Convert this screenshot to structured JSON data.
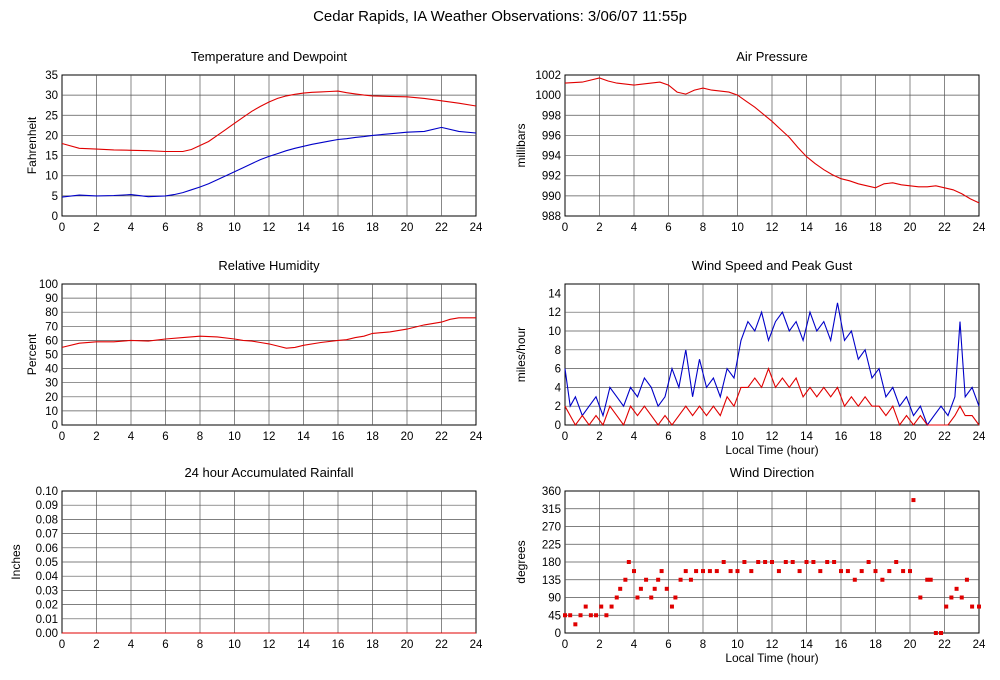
{
  "title": "Cedar Rapids, IA Weather Observations: 3/06/07 11:55p",
  "colors": {
    "red": "#e00000",
    "blue": "#0000c8",
    "grid": "#555555"
  },
  "chart_data": [
    {
      "id": "temp",
      "type": "line",
      "title": "Temperature and Dewpoint",
      "ylabel": "Fahrenheit",
      "xlabel": "",
      "xlim": [
        0,
        24
      ],
      "ylim": [
        0,
        35
      ],
      "xticks": [
        0,
        2,
        4,
        6,
        8,
        10,
        12,
        14,
        16,
        18,
        20,
        22,
        24
      ],
      "yticks": [
        0,
        5,
        10,
        15,
        20,
        25,
        30,
        35
      ],
      "series": [
        {
          "color": "red",
          "x": [
            0,
            1,
            2,
            3,
            4,
            5,
            6,
            6.5,
            7,
            7.5,
            8,
            8.5,
            9,
            9.5,
            10,
            10.5,
            11,
            11.5,
            12,
            12.5,
            13,
            13.5,
            14,
            14.5,
            15,
            15.5,
            16,
            16.5,
            17,
            17.5,
            18,
            19,
            20,
            21,
            22,
            23,
            24
          ],
          "y": [
            18,
            16.8,
            16.6,
            16.4,
            16.3,
            16.2,
            16,
            16,
            16,
            16.5,
            17.5,
            18.5,
            20,
            21.5,
            23,
            24.5,
            26,
            27.2,
            28.3,
            29.2,
            29.8,
            30.2,
            30.5,
            30.7,
            30.8,
            30.9,
            31,
            30.6,
            30.3,
            30,
            29.8,
            29.7,
            29.6,
            29.2,
            28.6,
            28,
            27.3
          ]
        },
        {
          "color": "blue",
          "x": [
            0,
            1,
            2,
            3,
            4,
            5,
            6,
            6.5,
            7,
            7.5,
            8,
            8.5,
            9,
            9.5,
            10,
            10.5,
            11,
            11.5,
            12,
            12.5,
            13,
            13.5,
            14,
            14.5,
            15,
            15.5,
            16,
            16.5,
            17,
            17.5,
            18,
            19,
            20,
            21,
            22,
            23,
            24
          ],
          "y": [
            4.7,
            5.2,
            5,
            5.1,
            5.3,
            4.8,
            5,
            5.3,
            5.8,
            6.5,
            7.2,
            8,
            9,
            10,
            11,
            12,
            13,
            14,
            14.8,
            15.5,
            16.2,
            16.8,
            17.3,
            17.8,
            18.2,
            18.6,
            19,
            19.2,
            19.5,
            19.7,
            20,
            20.4,
            20.8,
            21,
            22,
            21,
            20.6
          ]
        }
      ]
    },
    {
      "id": "pressure",
      "type": "line",
      "title": "Air Pressure",
      "ylabel": "millibars",
      "xlabel": "",
      "xlim": [
        0,
        24
      ],
      "ylim": [
        988,
        1002
      ],
      "xticks": [
        0,
        2,
        4,
        6,
        8,
        10,
        12,
        14,
        16,
        18,
        20,
        22,
        24
      ],
      "yticks": [
        988,
        990,
        992,
        994,
        996,
        998,
        1000,
        1002
      ],
      "series": [
        {
          "color": "red",
          "x": [
            0,
            1,
            2,
            2.5,
            3,
            4,
            5,
            5.5,
            6,
            6.5,
            7,
            7.5,
            8,
            8.5,
            9,
            9.5,
            10,
            10.5,
            11,
            11.5,
            12,
            12.5,
            13,
            13.5,
            14,
            14.5,
            15,
            15.5,
            16,
            16.5,
            17,
            17.5,
            18,
            18.5,
            19,
            19.5,
            20,
            20.5,
            21,
            21.5,
            22,
            22.5,
            23,
            23.5,
            24
          ],
          "y": [
            1001.2,
            1001.3,
            1001.7,
            1001.4,
            1001.2,
            1001,
            1001.2,
            1001.3,
            1001,
            1000.3,
            1000.1,
            1000.5,
            1000.7,
            1000.5,
            1000.4,
            1000.3,
            1000,
            999.4,
            998.8,
            998.1,
            997.4,
            996.6,
            995.8,
            994.8,
            993.9,
            993.2,
            992.6,
            992.1,
            991.7,
            991.5,
            991.2,
            991,
            990.8,
            991.2,
            991.3,
            991.1,
            991,
            990.9,
            990.9,
            991,
            990.8,
            990.6,
            990.2,
            989.7,
            989.3
          ]
        }
      ]
    },
    {
      "id": "humidity",
      "type": "line",
      "title": "Relative Humidity",
      "ylabel": "Percent",
      "xlabel": "",
      "xlim": [
        0,
        24
      ],
      "ylim": [
        0,
        100
      ],
      "xticks": [
        0,
        2,
        4,
        6,
        8,
        10,
        12,
        14,
        16,
        18,
        20,
        22,
        24
      ],
      "yticks": [
        0,
        10,
        20,
        30,
        40,
        50,
        60,
        70,
        80,
        90,
        100
      ],
      "series": [
        {
          "color": "red",
          "x": [
            0,
            1,
            2,
            3,
            4,
            5,
            6,
            7,
            8,
            9,
            10,
            10.5,
            11,
            11.5,
            12,
            12.5,
            13,
            13.5,
            14,
            15,
            16,
            16.5,
            17,
            17.5,
            18,
            19,
            20,
            21,
            22,
            22.5,
            23,
            24
          ],
          "y": [
            55,
            58,
            59,
            59,
            60,
            59.5,
            61,
            62,
            63,
            62.5,
            61,
            60,
            59.5,
            58.5,
            57.5,
            56,
            54.5,
            55,
            56.5,
            58.5,
            60,
            60.5,
            62,
            63,
            65,
            66,
            68,
            71,
            73,
            75,
            76,
            76
          ]
        }
      ]
    },
    {
      "id": "wind",
      "type": "line",
      "title": "Wind Speed and Peak Gust",
      "ylabel": "miles/hour",
      "xlabel": "Local Time (hour)",
      "xlim": [
        0,
        24
      ],
      "ylim": [
        0,
        15
      ],
      "xticks": [
        0,
        2,
        4,
        6,
        8,
        10,
        12,
        14,
        16,
        18,
        20,
        22,
        24
      ],
      "yticks": [
        0,
        2,
        4,
        6,
        8,
        10,
        12,
        14
      ],
      "series": [
        {
          "color": "blue",
          "x": [
            0,
            0.3,
            0.6,
            1,
            1.4,
            1.8,
            2.2,
            2.6,
            3,
            3.4,
            3.8,
            4.2,
            4.6,
            5,
            5.4,
            5.8,
            6.2,
            6.6,
            7,
            7.4,
            7.8,
            8.2,
            8.6,
            9,
            9.4,
            9.8,
            10.2,
            10.6,
            11,
            11.4,
            11.8,
            12.2,
            12.6,
            13,
            13.4,
            13.8,
            14.2,
            14.6,
            15,
            15.4,
            15.8,
            16.2,
            16.6,
            17,
            17.4,
            17.8,
            18.2,
            18.6,
            19,
            19.4,
            19.8,
            20.2,
            20.6,
            21,
            21.4,
            21.8,
            22.2,
            22.6,
            22.9,
            23.2,
            23.6,
            24
          ],
          "y": [
            6,
            2,
            3,
            1,
            2,
            3,
            1,
            4,
            3,
            2,
            4,
            3,
            5,
            4,
            2,
            3,
            6,
            4,
            8,
            3,
            7,
            4,
            5,
            3,
            6,
            5,
            9,
            11,
            10,
            12,
            9,
            11,
            12,
            10,
            11,
            9,
            12,
            10,
            11,
            9,
            13,
            9,
            10,
            7,
            8,
            5,
            6,
            3,
            4,
            2,
            3,
            1,
            2,
            0,
            1,
            2,
            1,
            3,
            11,
            3,
            4,
            2
          ]
        },
        {
          "color": "red",
          "x": [
            0,
            0.3,
            0.6,
            1,
            1.4,
            1.8,
            2.2,
            2.6,
            3,
            3.4,
            3.8,
            4.2,
            4.6,
            5,
            5.4,
            5.8,
            6.2,
            6.6,
            7,
            7.4,
            7.8,
            8.2,
            8.6,
            9,
            9.4,
            9.8,
            10.2,
            10.6,
            11,
            11.4,
            11.8,
            12.2,
            12.6,
            13,
            13.4,
            13.8,
            14.2,
            14.6,
            15,
            15.4,
            15.8,
            16.2,
            16.6,
            17,
            17.4,
            17.8,
            18.2,
            18.6,
            19,
            19.4,
            19.8,
            20.2,
            20.6,
            21,
            21.4,
            21.8,
            22.2,
            22.6,
            22.9,
            23.2,
            23.6,
            24
          ],
          "y": [
            2,
            1,
            0,
            1,
            0,
            1,
            0,
            2,
            1,
            0,
            2,
            1,
            2,
            1,
            0,
            1,
            0,
            1,
            2,
            1,
            2,
            1,
            2,
            1,
            3,
            2,
            4,
            4,
            5,
            4,
            6,
            4,
            5,
            4,
            5,
            3,
            4,
            3,
            4,
            3,
            4,
            2,
            3,
            2,
            3,
            2,
            2,
            1,
            2,
            0,
            1,
            0,
            1,
            0,
            0,
            0,
            0,
            1,
            2,
            1,
            1,
            0
          ]
        }
      ]
    },
    {
      "id": "rain",
      "type": "line",
      "title": "24 hour Accumulated Rainfall",
      "ylabel": "Inches",
      "xlabel": "",
      "xlim": [
        0,
        24
      ],
      "ylim": [
        0,
        0.1
      ],
      "xticks": [
        0,
        2,
        4,
        6,
        8,
        10,
        12,
        14,
        16,
        18,
        20,
        22,
        24
      ],
      "yticks": [
        "0.00",
        "0.01",
        "0.02",
        "0.03",
        "0.04",
        "0.05",
        "0.06",
        "0.07",
        "0.08",
        "0.09",
        "0.10"
      ],
      "series": [
        {
          "color": "red",
          "x": [
            0,
            24
          ],
          "y": [
            0,
            0
          ]
        }
      ]
    },
    {
      "id": "direction",
      "type": "scatter",
      "title": "Wind Direction",
      "ylabel": "degrees",
      "xlabel": "Local Time (hour)",
      "xlim": [
        0,
        24
      ],
      "ylim": [
        0,
        360
      ],
      "xticks": [
        0,
        2,
        4,
        6,
        8,
        10,
        12,
        14,
        16,
        18,
        20,
        22,
        24
      ],
      "yticks": [
        0,
        45,
        90,
        135,
        180,
        225,
        270,
        315,
        360
      ],
      "series": [
        {
          "color": "red",
          "x": [
            0,
            0.3,
            0.6,
            0.9,
            1.2,
            1.5,
            1.8,
            2.1,
            2.4,
            2.7,
            3,
            3.2,
            3.5,
            3.7,
            4,
            4.2,
            4.4,
            4.7,
            5,
            5.2,
            5.4,
            5.6,
            5.9,
            6.2,
            6.4,
            6.7,
            7,
            7.3,
            7.6,
            8,
            8.4,
            8.8,
            9.2,
            9.6,
            10,
            10.4,
            10.8,
            11.2,
            11.6,
            12,
            12.4,
            12.8,
            13.2,
            13.6,
            14,
            14.4,
            14.8,
            15.2,
            15.6,
            16,
            16.4,
            16.8,
            17.2,
            17.6,
            18,
            18.4,
            18.8,
            19.2,
            19.6,
            20,
            20.2,
            20.6,
            21,
            21.2,
            21.5,
            21.8,
            22.1,
            22.4,
            22.7,
            23,
            23.3,
            23.6,
            24
          ],
          "y": [
            45,
            45,
            22,
            45,
            67,
            45,
            45,
            67,
            45,
            67,
            90,
            112,
            135,
            180,
            157,
            90,
            112,
            135,
            90,
            112,
            135,
            157,
            112,
            67,
            90,
            135,
            157,
            135,
            157,
            157,
            157,
            157,
            180,
            157,
            157,
            180,
            157,
            180,
            180,
            180,
            157,
            180,
            180,
            157,
            180,
            180,
            157,
            180,
            180,
            157,
            157,
            135,
            157,
            180,
            157,
            135,
            157,
            180,
            157,
            157,
            337,
            90,
            135,
            135,
            0,
            0,
            67,
            90,
            112,
            90,
            135,
            67,
            67
          ]
        }
      ]
    }
  ]
}
